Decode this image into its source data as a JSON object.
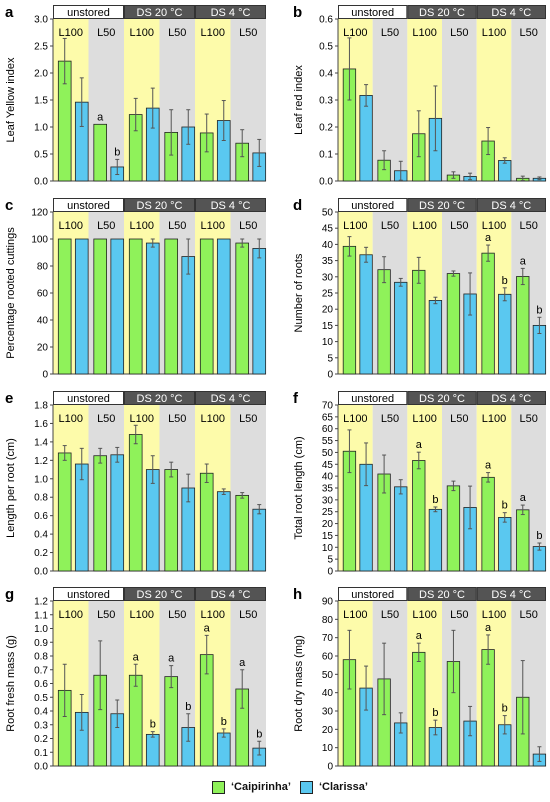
{
  "colors": {
    "caipirinha": "#8ff25a",
    "clarissa": "#5ac8f0",
    "yellow_band": "#fdfbaa",
    "gray_band": "#dddddd",
    "header_dark": "#545454",
    "header_light": "#ffffff"
  },
  "legend": [
    {
      "label": "‘Caipirinha’",
      "color": "#8ff25a"
    },
    {
      "label": "‘Clarissa’",
      "color": "#5ac8f0"
    }
  ],
  "chart_data": [
    {
      "panel": "a",
      "type": "bar",
      "ylabel": "Leaf Yellow  index",
      "ylim": [
        0,
        3.0
      ],
      "yticks": [
        "0.0",
        "0.5",
        "1.0",
        "1.5",
        "2.0",
        "2.5",
        "3.0"
      ],
      "headers": [
        "unstored",
        "DS 20 °C",
        "DS 4 °C"
      ],
      "sublabels": [
        "L100",
        "L50",
        "L100",
        "L50",
        "L100",
        "L50"
      ],
      "series": [
        {
          "name": "‘Caipirinha’",
          "values": [
            2.22,
            1.05,
            1.23,
            0.9,
            0.89,
            0.7
          ],
          "errors": [
            0.42,
            0.0,
            0.3,
            0.42,
            0.35,
            0.25
          ]
        },
        {
          "name": "‘Clarissa’",
          "values": [
            1.46,
            0.26,
            1.35,
            1.0,
            1.12,
            0.52
          ],
          "errors": [
            0.45,
            0.14,
            0.37,
            0.32,
            0.37,
            0.25
          ]
        }
      ],
      "letters": [
        [
          "",
          "a",
          "",
          "",
          "",
          ""
        ],
        [
          "",
          "b",
          "",
          "",
          "",
          ""
        ]
      ]
    },
    {
      "panel": "b",
      "type": "bar",
      "ylabel": "Leaf red index",
      "ylim": [
        0,
        0.6
      ],
      "yticks": [
        "0.0",
        "0.1",
        "0.2",
        "0.3",
        "0.4",
        "0.5",
        "0.6"
      ],
      "headers": [
        "unstored",
        "DS 20 °C",
        "DS 4 °C"
      ],
      "sublabels": [
        "L100",
        "L50",
        "L100",
        "L50",
        "L100",
        "L50"
      ],
      "series": [
        {
          "name": "‘Caipirinha’",
          "values": [
            0.415,
            0.077,
            0.175,
            0.022,
            0.148,
            0.01
          ],
          "errors": [
            0.115,
            0.035,
            0.085,
            0.012,
            0.05,
            0.008
          ]
        },
        {
          "name": "‘Clarissa’",
          "values": [
            0.317,
            0.038,
            0.232,
            0.017,
            0.076,
            0.01
          ],
          "errors": [
            0.04,
            0.035,
            0.12,
            0.012,
            0.01,
            0.005
          ]
        }
      ],
      "letters": [
        [
          "",
          "",
          "",
          "",
          "",
          ""
        ],
        [
          "",
          "",
          "",
          "",
          "",
          ""
        ]
      ]
    },
    {
      "panel": "c",
      "type": "bar",
      "ylabel": "Percentage rooted cuttings",
      "ylim": [
        0,
        120
      ],
      "yticks": [
        "0",
        "20",
        "40",
        "60",
        "80",
        "100",
        "120"
      ],
      "headers": [
        "unstored",
        "DS 20 °C",
        "DS 4 °C"
      ],
      "sublabels": [
        "L100",
        "L50",
        "L100",
        "L50",
        "L100",
        "L50"
      ],
      "series": [
        {
          "name": "‘Caipirinha’",
          "values": [
            100,
            100,
            100,
            100,
            100,
            97
          ],
          "errors": [
            0,
            0,
            0,
            0,
            0,
            3
          ]
        },
        {
          "name": "‘Clarissa’",
          "values": [
            100,
            100,
            97,
            87,
            100,
            93
          ],
          "errors": [
            0,
            0,
            3,
            13,
            0,
            7
          ]
        }
      ],
      "letters": [
        [
          "",
          "",
          "",
          "",
          "",
          ""
        ],
        [
          "",
          "",
          "",
          "",
          "",
          ""
        ]
      ]
    },
    {
      "panel": "d",
      "type": "bar",
      "ylabel": "Number of roots",
      "ylim": [
        0,
        50
      ],
      "yticks": [
        "0",
        "5",
        "10",
        "15",
        "20",
        "25",
        "30",
        "35",
        "40",
        "45",
        "50"
      ],
      "headers": [
        "unstored",
        "DS 20 °C",
        "DS 4 °C"
      ],
      "sublabels": [
        "L100",
        "L50",
        "L100",
        "L50",
        "L100",
        "L50"
      ],
      "series": [
        {
          "name": "‘Caipirinha’",
          "values": [
            39.4,
            32.2,
            32.0,
            31.0,
            37.3,
            30.1
          ],
          "errors": [
            3.0,
            4.0,
            4.0,
            0.8,
            2.5,
            2.5
          ]
        },
        {
          "name": "‘Clarissa’",
          "values": [
            36.8,
            28.3,
            22.7,
            24.7,
            24.6,
            15.0
          ],
          "errors": [
            2.3,
            1.2,
            1.0,
            6.5,
            2.0,
            2.5
          ]
        }
      ],
      "letters": [
        [
          "",
          "",
          "",
          "",
          "a",
          "a"
        ],
        [
          "",
          "",
          "",
          "",
          "b",
          "b"
        ]
      ]
    },
    {
      "panel": "e",
      "type": "bar",
      "ylabel": "Length per root (cm)",
      "ylim": [
        0,
        1.8
      ],
      "yticks": [
        "0.0",
        "0.2",
        "0.4",
        "0.6",
        "0.8",
        "1.0",
        "1.2",
        "1.4",
        "1.6",
        "1.8"
      ],
      "headers": [
        "unstored",
        "DS 20 °C",
        "DS 4 °C"
      ],
      "sublabels": [
        "L100",
        "L50",
        "L100",
        "L50",
        "L100",
        "L50"
      ],
      "series": [
        {
          "name": "‘Caipirinha’",
          "values": [
            1.28,
            1.25,
            1.48,
            1.1,
            1.06,
            0.82
          ],
          "errors": [
            0.08,
            0.08,
            0.1,
            0.08,
            0.1,
            0.03
          ]
        },
        {
          "name": "‘Clarissa’",
          "values": [
            1.16,
            1.26,
            1.1,
            0.9,
            0.86,
            0.67
          ],
          "errors": [
            0.17,
            0.08,
            0.15,
            0.15,
            0.03,
            0.05
          ]
        }
      ],
      "letters": [
        [
          "",
          "",
          "",
          "",
          "",
          ""
        ],
        [
          "",
          "",
          "",
          "",
          "",
          ""
        ]
      ]
    },
    {
      "panel": "f",
      "type": "bar",
      "ylabel": "Total root length (cm)",
      "ylim": [
        0,
        70
      ],
      "yticks": [
        "0",
        "5",
        "10",
        "15",
        "20",
        "25",
        "30",
        "35",
        "40",
        "45",
        "50",
        "55",
        "60",
        "65",
        "70"
      ],
      "headers": [
        "unstored",
        "DS 20 °C",
        "DS 4 °C"
      ],
      "sublabels": [
        "L100",
        "L50",
        "L100",
        "L50",
        "L100",
        "L50"
      ],
      "series": [
        {
          "name": "‘Caipirinha’",
          "values": [
            50.5,
            40.9,
            46.6,
            35.9,
            39.5,
            25.8
          ],
          "errors": [
            9.0,
            8.0,
            3.5,
            2.0,
            2.0,
            2.0
          ]
        },
        {
          "name": "‘Clarissa’",
          "values": [
            45.0,
            35.5,
            26.0,
            26.8,
            22.6,
            10.3
          ],
          "errors": [
            9.0,
            3.0,
            1.0,
            9.0,
            2.0,
            1.5
          ]
        }
      ],
      "letters": [
        [
          "",
          "",
          "a",
          "",
          "a",
          "a"
        ],
        [
          "",
          "",
          "b",
          "",
          "b",
          "b"
        ]
      ]
    },
    {
      "panel": "g",
      "type": "bar",
      "ylabel": "Root fresh mass (g)",
      "ylim": [
        0,
        1.2
      ],
      "yticks": [
        "0.0",
        "0.1",
        "0.2",
        "0.3",
        "0.4",
        "0.5",
        "0.6",
        "0.7",
        "0.8",
        "0.9",
        "1.0",
        "1.1",
        "1.2"
      ],
      "headers": [
        "unstored",
        "DS 20 °C",
        "DS 4 °C"
      ],
      "sublabels": [
        "L100",
        "L50",
        "L100",
        "L50",
        "L100",
        "L50"
      ],
      "series": [
        {
          "name": "‘Caipirinha’",
          "values": [
            0.55,
            0.66,
            0.66,
            0.65,
            0.81,
            0.56
          ],
          "errors": [
            0.19,
            0.25,
            0.08,
            0.08,
            0.14,
            0.14
          ]
        },
        {
          "name": "‘Clarissa’",
          "values": [
            0.39,
            0.38,
            0.23,
            0.28,
            0.24,
            0.13
          ],
          "errors": [
            0.13,
            0.1,
            0.02,
            0.1,
            0.03,
            0.05
          ]
        }
      ],
      "letters": [
        [
          "",
          "",
          "a",
          "a",
          "a",
          "a"
        ],
        [
          "",
          "",
          "b",
          "b",
          "b",
          "b"
        ]
      ]
    },
    {
      "panel": "h",
      "type": "bar",
      "ylabel": "Root dry mass (mg)",
      "ylim": [
        0,
        90
      ],
      "yticks": [
        "0",
        "10",
        "20",
        "30",
        "40",
        "50",
        "60",
        "70",
        "80",
        "90"
      ],
      "headers": [
        "unstored",
        "DS 20 °C",
        "DS 4 °C"
      ],
      "sublabels": [
        "L100",
        "L50",
        "L100",
        "L50",
        "L100",
        "L50"
      ],
      "series": [
        {
          "name": "‘Caipirinha’",
          "values": [
            58.0,
            47.5,
            62.0,
            57.0,
            63.5,
            37.5
          ],
          "errors": [
            16.0,
            19.5,
            5.0,
            17.0,
            8.0,
            20.0
          ]
        },
        {
          "name": "‘Clarissa’",
          "values": [
            42.5,
            23.5,
            21.0,
            24.5,
            22.5,
            6.5
          ],
          "errors": [
            12.0,
            5.5,
            4.0,
            8.0,
            5.0,
            4.0
          ]
        }
      ],
      "letters": [
        [
          "",
          "",
          "a",
          "",
          "a",
          ""
        ],
        [
          "",
          "",
          "b",
          "",
          "b",
          ""
        ]
      ]
    }
  ]
}
